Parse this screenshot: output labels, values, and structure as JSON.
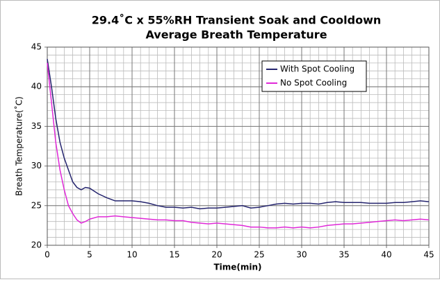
{
  "chart_data": {
    "type": "line",
    "title": "29.4˚C x 55%RH Transient Soak and Cooldown",
    "subtitle": "Average Breath Temperature",
    "x_label": "Time(min)",
    "y_label": "Breath Temperature(˚C)",
    "x": [
      0,
      0.5,
      1,
      1.5,
      2,
      2.5,
      3,
      3.5,
      4,
      4.5,
      5,
      6,
      7,
      8,
      9,
      10,
      11,
      12,
      13,
      14,
      15,
      16,
      17,
      18,
      19,
      20,
      21,
      22,
      23,
      24,
      25,
      26,
      27,
      28,
      29,
      30,
      31,
      32,
      33,
      34,
      35,
      36,
      37,
      38,
      39,
      40,
      41,
      42,
      43,
      44,
      45
    ],
    "series": [
      {
        "name": "With Spot Cooling",
        "color": "#24246e",
        "values": [
          43.5,
          40,
          36,
          33,
          31,
          29.5,
          28,
          27.3,
          27,
          27.3,
          27.2,
          26.5,
          26,
          25.6,
          25.6,
          25.6,
          25.5,
          25.3,
          25,
          24.8,
          24.8,
          24.7,
          24.8,
          24.6,
          24.7,
          24.7,
          24.8,
          24.9,
          25,
          24.7,
          24.8,
          25,
          25.2,
          25.3,
          25.2,
          25.3,
          25.3,
          25.2,
          25.4,
          25.5,
          25.4,
          25.4,
          25.4,
          25.3,
          25.3,
          25.3,
          25.4,
          25.4,
          25.5,
          25.6,
          25.5
        ]
      },
      {
        "name": "No Spot Cooling",
        "color": "#e028d8",
        "values": [
          43,
          38,
          33,
          29.5,
          27,
          25,
          24,
          23.2,
          22.8,
          23,
          23.3,
          23.6,
          23.6,
          23.7,
          23.6,
          23.5,
          23.4,
          23.3,
          23.2,
          23.2,
          23.1,
          23.1,
          22.9,
          22.8,
          22.7,
          22.8,
          22.7,
          22.6,
          22.5,
          22.3,
          22.3,
          22.2,
          22.2,
          22.3,
          22.2,
          22.3,
          22.2,
          22.3,
          22.5,
          22.6,
          22.7,
          22.7,
          22.8,
          22.9,
          23,
          23.1,
          23.2,
          23.1,
          23.2,
          23.3,
          23.2
        ]
      }
    ],
    "xlim": [
      0,
      45
    ],
    "xticks": [
      0,
      5,
      10,
      15,
      20,
      25,
      30,
      35,
      40,
      45
    ],
    "ylim": [
      20,
      45
    ],
    "yticks": [
      20,
      25,
      30,
      35,
      40,
      45
    ],
    "grid": true,
    "minor_grid": {
      "x": 1,
      "y": 1
    },
    "legend": "upper right"
  }
}
